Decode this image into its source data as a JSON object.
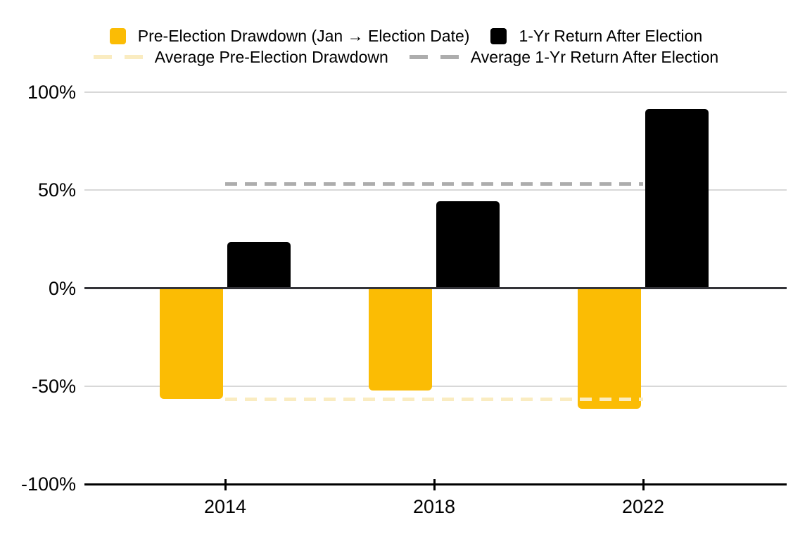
{
  "chart_data": {
    "type": "bar",
    "title": "",
    "categories": [
      "2014",
      "2018",
      "2022"
    ],
    "series": [
      {
        "name": "Pre-Election Drawdown (Jan → Election Date)",
        "color": "#FBBC04",
        "values": [
          -56.6,
          -52.2,
          -61.6
        ]
      },
      {
        "name": "1-Yr Return After Election",
        "color": "#000000",
        "values": [
          23.4,
          44.3,
          91.4
        ]
      }
    ],
    "average_lines": [
      {
        "name": "Average Pre-Election Drawdown",
        "color": "#FAECC1",
        "value": -56.8,
        "style": "dashed"
      },
      {
        "name": "Average 1-Yr Return After Election",
        "color": "#ADADAD",
        "value": 53,
        "style": "dashed"
      }
    ],
    "y_axis": {
      "ticks": [
        "100%",
        "50%",
        "0%",
        "-50%",
        "-100%"
      ],
      "tick_values": [
        100,
        50,
        0,
        -50,
        -100
      ],
      "min": -100,
      "max": 100,
      "format": "percent"
    },
    "x_axis": {
      "ticks": [
        "2014",
        "2018",
        "2022"
      ]
    },
    "legend_position": "top",
    "grid": true,
    "colors": {
      "gridline": "#d8d8d8",
      "zero_line": "#333338",
      "bottom_axis": "#000000",
      "background": "#ffffff",
      "text": "#000000"
    }
  }
}
